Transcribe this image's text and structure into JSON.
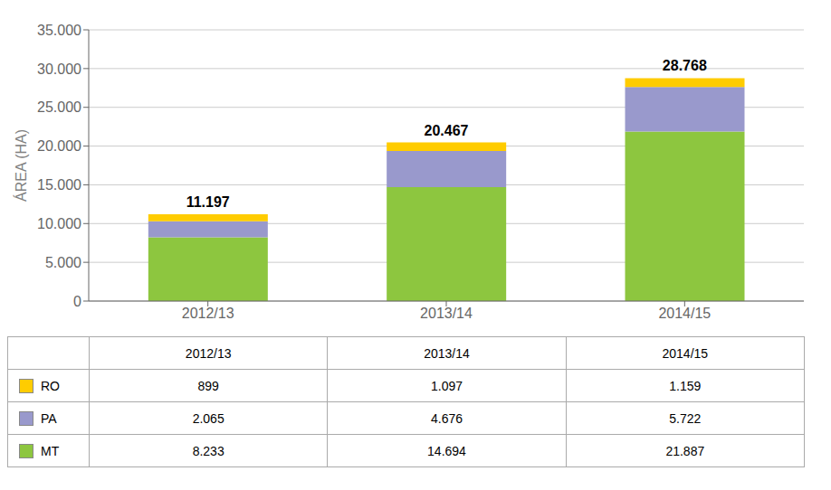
{
  "chart_data": {
    "type": "bar",
    "stacked": true,
    "grid": true,
    "ylabel": "ÁREA (HA)",
    "categories": [
      "2012/13",
      "2013/14",
      "2014/15"
    ],
    "series": [
      {
        "name": "MT",
        "color": "#8DC63F",
        "values": [
          8233,
          14694,
          21887
        ],
        "value_labels": [
          "8.233",
          "14.694",
          "21.887"
        ]
      },
      {
        "name": "PA",
        "color": "#9999CC",
        "values": [
          2065,
          4676,
          5722
        ],
        "value_labels": [
          "2.065",
          "4.676",
          "5.722"
        ]
      },
      {
        "name": "RO",
        "color": "#FFCC00",
        "values": [
          899,
          1097,
          1159
        ],
        "value_labels": [
          "899",
          "1.097",
          "1.159"
        ]
      }
    ],
    "totals": [
      11197,
      20467,
      28768
    ],
    "total_labels": [
      "11.197",
      "20.467",
      "28.768"
    ],
    "ylim": [
      0,
      35000
    ],
    "yticks": [
      0,
      {
        "value": 5000,
        "label": "5.000"
      },
      {
        "value": 10000,
        "label": "10.000"
      },
      {
        "value": 15000,
        "label": "15.000"
      },
      {
        "value": 20000,
        "label": "20.000"
      },
      {
        "value": 25000,
        "label": "25.000"
      },
      {
        "value": 30000,
        "label": "30.000"
      },
      {
        "value": 35000,
        "label": "35.000"
      }
    ]
  }
}
